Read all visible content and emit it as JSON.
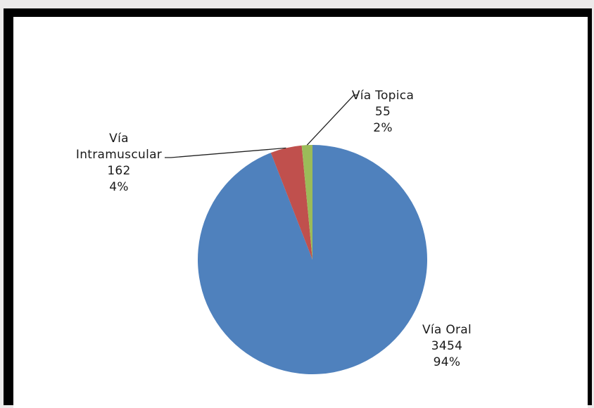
{
  "chart_data": {
    "type": "pie",
    "title": "",
    "slices": [
      {
        "label": "Vía Oral",
        "value": 3454,
        "percent": "94%",
        "color": "#4f81bd"
      },
      {
        "label": "Vía Intramuscular",
        "value": 162,
        "percent": "4%",
        "color": "#c0504d"
      },
      {
        "label": "Vía Topica",
        "value": 55,
        "percent": "2%",
        "color": "#9bbb59"
      }
    ],
    "data_labels": [
      {
        "lines": [
          "Vía Oral",
          "3454",
          "94%"
        ]
      },
      {
        "lines": [
          "Vía",
          "Intramuscular",
          "162",
          "4%"
        ]
      },
      {
        "lines": [
          "Vía Topica",
          "55",
          "2%"
        ]
      }
    ],
    "legend": "none"
  }
}
